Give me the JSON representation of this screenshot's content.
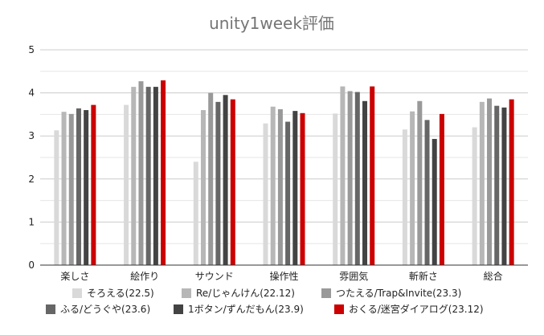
{
  "chart_data": {
    "type": "bar",
    "title": "unity1week評価",
    "xlabel": "",
    "ylabel": "",
    "ylim": [
      0,
      5
    ],
    "yticks": [
      0,
      1,
      2,
      3,
      4,
      5
    ],
    "grid": true,
    "legend_position": "bottom",
    "categories": [
      "楽しさ",
      "絵作り",
      "サウンド",
      "操作性",
      "雰囲気",
      "斬新さ",
      "総合"
    ],
    "series": [
      {
        "name": "そろえる(22.5)",
        "color": "#d9d9d9",
        "values": [
          3.13,
          3.72,
          2.4,
          3.29,
          3.52,
          3.15,
          3.2
        ]
      },
      {
        "name": "Re/じゃんけん(22.12)",
        "color": "#b7b7b7",
        "values": [
          3.56,
          4.14,
          3.6,
          3.68,
          4.15,
          3.57,
          3.79
        ]
      },
      {
        "name": "つたえる/Trap&Invite(23.3)",
        "color": "#999999",
        "values": [
          3.51,
          4.27,
          4.0,
          3.62,
          4.04,
          3.81,
          3.87
        ]
      },
      {
        "name": "ふる/どうぐや(23.6)",
        "color": "#666666",
        "values": [
          3.64,
          4.14,
          3.79,
          3.33,
          4.02,
          3.37,
          3.7
        ]
      },
      {
        "name": "1ボタン/ずんだもん(23.9)",
        "color": "#434343",
        "values": [
          3.6,
          4.14,
          3.95,
          3.58,
          3.81,
          2.93,
          3.66
        ]
      },
      {
        "name": "おくる/迷宮ダイアログ(23.12)",
        "color": "#cc0000",
        "values": [
          3.72,
          4.29,
          3.85,
          3.53,
          4.15,
          3.51,
          3.85
        ]
      }
    ]
  }
}
